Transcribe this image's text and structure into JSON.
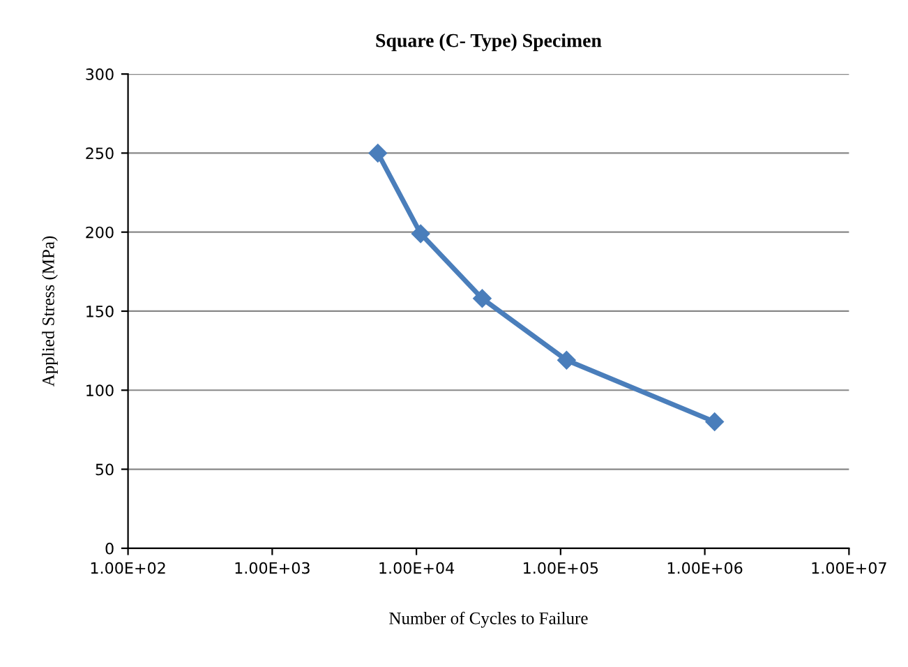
{
  "chart_data": {
    "type": "line",
    "title": "Square (C- Type) Specimen",
    "xlabel": "Number of Cycles to Failure",
    "ylabel": "Applied Stress (MPa)",
    "x": [
      5400,
      10700,
      28600,
      110000,
      1170000
    ],
    "series": [
      {
        "color": "#4a7ebb",
        "values": [
          250,
          199,
          158,
          119,
          80
        ]
      }
    ],
    "log": "x",
    "xlim": [
      100,
      10000000
    ],
    "xticks": [
      {
        "value": 100,
        "label": "1.00E+02"
      },
      {
        "value": 1000,
        "label": "1.00E+03"
      },
      {
        "value": 10000,
        "label": "1.00E+04"
      },
      {
        "value": 100000,
        "label": "1.00E+05"
      },
      {
        "value": 1000000,
        "label": "1.00E+06"
      },
      {
        "value": 10000000,
        "label": "1.00E+07"
      }
    ],
    "ylim": [
      0,
      300
    ],
    "yticks": [
      0,
      50,
      100,
      150,
      200,
      250,
      300
    ],
    "grid": "y",
    "legend": false,
    "marker": "diamond",
    "line_style": "solid"
  }
}
